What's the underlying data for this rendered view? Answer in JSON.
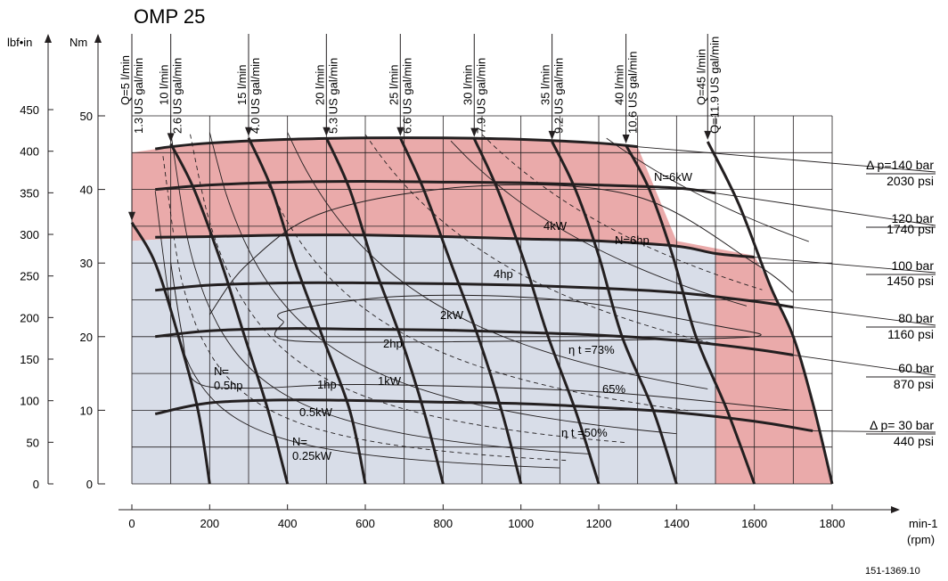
{
  "chart_data": {
    "type": "line",
    "title": "OMP 25",
    "xlabel": "min-1",
    "xlabel_sub": "(rpm)",
    "ylabel_left": "lbf•in",
    "ylabel_right": "Nm",
    "xlim": [
      0,
      1800
    ],
    "ylim_nm": [
      0,
      50
    ],
    "ylim_lbfin": [
      0,
      450
    ],
    "x_ticks": [
      "0",
      "200",
      "400",
      "600",
      "800",
      "1000",
      "1200",
      "1400",
      "1600",
      "1800"
    ],
    "nm_ticks": [
      "0",
      "10",
      "20",
      "30",
      "40",
      "50"
    ],
    "lbfin_ticks": [
      "0",
      "50",
      "100",
      "150",
      "200",
      "250",
      "300",
      "350",
      "400",
      "450"
    ],
    "reference": "151-1369.10",
    "continuous_area": {
      "legend": "",
      "color": "#d8dde8",
      "boundary": [
        [
          0,
          0
        ],
        [
          0,
          33
        ],
        [
          200,
          33.6
        ],
        [
          400,
          33.8
        ],
        [
          600,
          33.8
        ],
        [
          800,
          33.6
        ],
        [
          1000,
          33.3
        ],
        [
          1200,
          33
        ],
        [
          1400,
          32.3
        ],
        [
          1500,
          31.3
        ],
        [
          1500,
          0
        ]
      ]
    },
    "intermittent_area": {
      "legend": "",
      "color": "#eaaaaa",
      "boundary": [
        [
          0,
          33
        ],
        [
          0,
          45
        ],
        [
          100,
          45.8
        ],
        [
          200,
          46.3
        ],
        [
          400,
          46.8
        ],
        [
          600,
          47
        ],
        [
          800,
          47
        ],
        [
          1000,
          46.8
        ],
        [
          1200,
          46.3
        ],
        [
          1300,
          45.8
        ],
        [
          1400,
          33
        ],
        [
          1600,
          31
        ],
        [
          1640,
          27
        ],
        [
          1700,
          20
        ],
        [
          1750,
          11
        ],
        [
          1800,
          0
        ],
        [
          1600,
          0
        ],
        [
          1500,
          0
        ],
        [
          1500,
          31.3
        ],
        [
          1400,
          32.3
        ],
        [
          1200,
          33
        ],
        [
          1000,
          33.3
        ],
        [
          800,
          33.6
        ],
        [
          600,
          33.8
        ],
        [
          400,
          33.8
        ],
        [
          200,
          33.6
        ],
        [
          0,
          33
        ]
      ]
    },
    "pressure_curves": [
      {
        "name": "Δp=140 bar",
        "label_bar": "Δ p=140 bar",
        "label_psi": "2030 psi",
        "points": [
          [
            60,
            45.5
          ],
          [
            100,
            45.8
          ],
          [
            200,
            46.3
          ],
          [
            400,
            46.8
          ],
          [
            600,
            47
          ],
          [
            800,
            47
          ],
          [
            1000,
            46.8
          ],
          [
            1200,
            46.3
          ],
          [
            1300,
            45.8
          ]
        ]
      },
      {
        "name": "120 bar",
        "label_bar": "120 bar",
        "label_psi": "1740 psi",
        "points": [
          [
            60,
            40
          ],
          [
            200,
            40.6
          ],
          [
            400,
            41
          ],
          [
            600,
            41.1
          ],
          [
            800,
            41
          ],
          [
            1000,
            40.9
          ],
          [
            1200,
            40.6
          ],
          [
            1400,
            40.2
          ],
          [
            1500,
            39.5
          ]
        ]
      },
      {
        "name": "100 bar",
        "label_bar": "100 bar",
        "label_psi": "1450 psi",
        "points": [
          [
            60,
            33.5
          ],
          [
            200,
            33.6
          ],
          [
            400,
            33.8
          ],
          [
            600,
            33.8
          ],
          [
            800,
            33.6
          ],
          [
            1000,
            33.3
          ],
          [
            1200,
            33
          ],
          [
            1400,
            32.3
          ],
          [
            1500,
            31.3
          ],
          [
            1600,
            30.8
          ]
        ]
      },
      {
        "name": "80 bar",
        "label_bar": "80 bar",
        "label_psi": "1160 psi",
        "points": [
          [
            60,
            26.3
          ],
          [
            200,
            27
          ],
          [
            400,
            27.3
          ],
          [
            600,
            27.3
          ],
          [
            800,
            27.2
          ],
          [
            1000,
            27
          ],
          [
            1200,
            26.6
          ],
          [
            1400,
            26
          ],
          [
            1600,
            24.8
          ],
          [
            1700,
            24
          ]
        ]
      },
      {
        "name": "60 bar",
        "label_bar": "60 bar",
        "label_psi": "870 psi",
        "points": [
          [
            60,
            20
          ],
          [
            200,
            20.8
          ],
          [
            400,
            21.1
          ],
          [
            600,
            21
          ],
          [
            800,
            20.9
          ],
          [
            1000,
            20.6
          ],
          [
            1200,
            20.2
          ],
          [
            1400,
            19.5
          ],
          [
            1600,
            18.3
          ],
          [
            1700,
            17.5
          ]
        ]
      },
      {
        "name": "Δp=30 bar",
        "label_bar": "Δ p= 30 bar",
        "label_psi": "440 psi",
        "points": [
          [
            60,
            9.5
          ],
          [
            200,
            11
          ],
          [
            400,
            11.4
          ],
          [
            600,
            11.3
          ],
          [
            800,
            11.1
          ],
          [
            1000,
            10.9
          ],
          [
            1200,
            10.4
          ],
          [
            1400,
            9.7
          ],
          [
            1600,
            8.5
          ],
          [
            1750,
            7.2
          ]
        ]
      }
    ],
    "flow_curves": [
      {
        "lmin": "Q=5 l/min",
        "usgal": "1.3 US gal/min",
        "points": [
          [
            0,
            35.5
          ],
          [
            60,
            30
          ],
          [
            120,
            20
          ],
          [
            170,
            10
          ],
          [
            200,
            0
          ]
        ]
      },
      {
        "lmin": "10 l/min",
        "usgal": "2.6 US gal/min",
        "points": [
          [
            100,
            46.2
          ],
          [
            160,
            40
          ],
          [
            230,
            30
          ],
          [
            290,
            20
          ],
          [
            350,
            10
          ],
          [
            400,
            0
          ]
        ]
      },
      {
        "lmin": "15 l/min",
        "usgal": "4.0 US gal/min",
        "points": [
          [
            300,
            47
          ],
          [
            360,
            40
          ],
          [
            420,
            30
          ],
          [
            490,
            20
          ],
          [
            560,
            10
          ],
          [
            600,
            0
          ]
        ]
      },
      {
        "lmin": "20 l/min",
        "usgal": "5.3 US gal/min",
        "points": [
          [
            500,
            47
          ],
          [
            560,
            40
          ],
          [
            620,
            30
          ],
          [
            690,
            20
          ],
          [
            750,
            10
          ],
          [
            800,
            0
          ]
        ]
      },
      {
        "lmin": "25 l/min",
        "usgal": "6.6 US gal/min",
        "points": [
          [
            690,
            47
          ],
          [
            750,
            40
          ],
          [
            820,
            30
          ],
          [
            890,
            20
          ],
          [
            950,
            10
          ],
          [
            1000,
            0
          ]
        ]
      },
      {
        "lmin": "30 l/min",
        "usgal": "7.9 US gal/min",
        "points": [
          [
            880,
            46.9
          ],
          [
            940,
            40
          ],
          [
            1010,
            30
          ],
          [
            1070,
            20
          ],
          [
            1140,
            10
          ],
          [
            1200,
            0
          ]
        ]
      },
      {
        "lmin": "35 l/min",
        "usgal": "9.2 US gal/min",
        "points": [
          [
            1080,
            46.5
          ],
          [
            1140,
            40
          ],
          [
            1200,
            31
          ],
          [
            1260,
            20
          ],
          [
            1340,
            10
          ],
          [
            1400,
            0
          ]
        ]
      },
      {
        "lmin": "40 l/min",
        "usgal": "10.6 US gal/min",
        "points": [
          [
            1270,
            46
          ],
          [
            1330,
            40
          ],
          [
            1390,
            31
          ],
          [
            1450,
            20
          ],
          [
            1530,
            10
          ],
          [
            1600,
            0
          ]
        ]
      },
      {
        "lmin": "Q=45 l/min",
        "usgal": "Q=11.9 US gal/min",
        "points": [
          [
            1480,
            46.5
          ],
          [
            1560,
            38
          ],
          [
            1640,
            27
          ],
          [
            1700,
            20
          ],
          [
            1750,
            11
          ],
          [
            1800,
            0
          ]
        ]
      }
    ],
    "power_labels_kw": [
      "N=6kW",
      "4kW",
      "2kW",
      "1kW",
      "0.5kW",
      "N= 0.25kW"
    ],
    "power_labels_hp": [
      "N=6hp",
      "4hp",
      "2hp",
      "1hp",
      "N= 0.5hp"
    ],
    "efficiency_labels": [
      "η t =73%",
      "65%",
      "η t =50%"
    ]
  }
}
